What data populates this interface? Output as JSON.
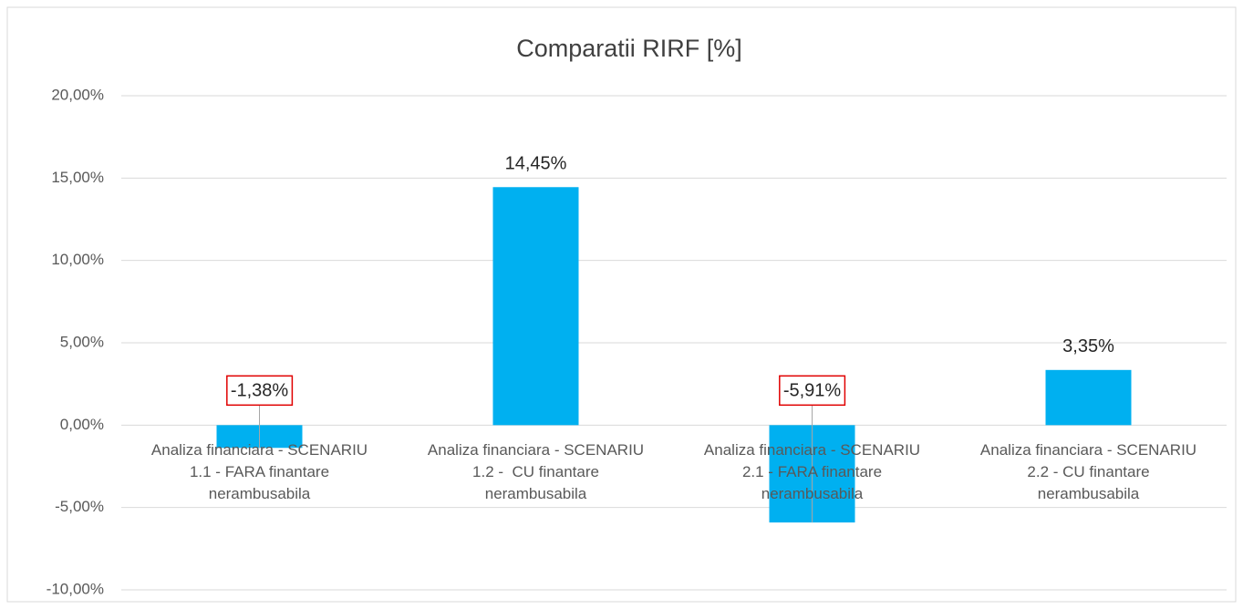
{
  "chart_data": {
    "type": "bar",
    "title": "Comparatii RIRF [%]",
    "categories": [
      "Analiza financiara - SCENARIU 1.1 - FARA finantare nerambusabila",
      "Analiza financiara - SCENARIU 1.2 -  CU finantare nerambusabila",
      "Analiza financiara - SCENARIU 2.1 - FARA finantare nerambusabila",
      "Analiza financiara - SCENARIU 2.2 - CU finantare nerambusabila"
    ],
    "values": [
      -1.38,
      14.45,
      -5.91,
      3.35
    ],
    "value_labels": [
      "-1,38%",
      "14,45%",
      "-5,91%",
      "3,35%"
    ],
    "color": "#00b0f0",
    "ylim": [
      -10,
      20
    ],
    "yticks": [
      {
        "value": -10,
        "label": "-10,00%"
      },
      {
        "value": -5,
        "label": "-5,00%"
      },
      {
        "value": 0,
        "label": "0,00%"
      },
      {
        "value": 5,
        "label": "5,00%"
      },
      {
        "value": 10,
        "label": "10,00%"
      },
      {
        "value": 15,
        "label": "15,00%"
      },
      {
        "value": 20,
        "label": "20,00%"
      }
    ],
    "grid": true
  }
}
